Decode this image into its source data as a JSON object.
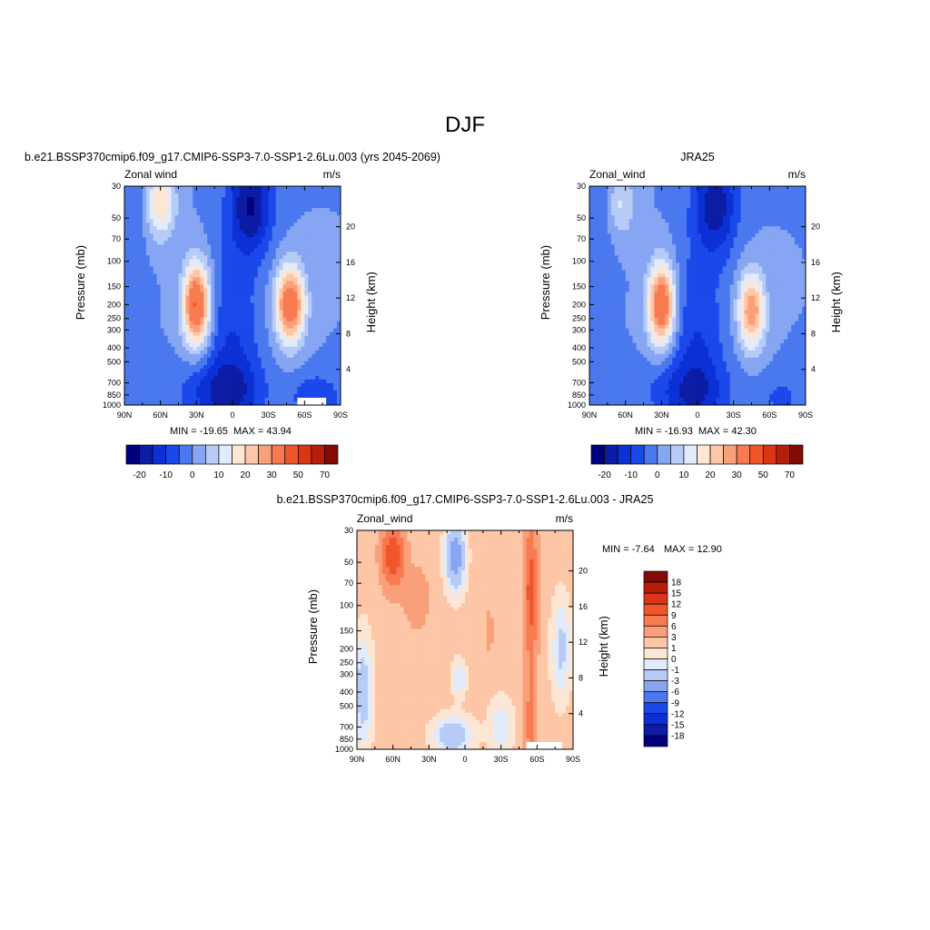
{
  "figure": {
    "title": "DJF",
    "colors": {
      "white": "#ffffff",
      "missing": "#ffffff"
    }
  },
  "chart_data": [
    {
      "type": "heatmap",
      "id": "model",
      "title": "b.e21.BSSP370cmip6.f09_g17.CMIP6-SSP3-7.0-SSP1-2.6Lu.003 (yrs 2045-2069)",
      "left_label": "Zonal wind",
      "right_label": "m/s",
      "ylabel": "Pressure (mb)",
      "ylabel_right": "Height (km)",
      "x_ticks": [
        "90N",
        "60N",
        "30N",
        "0",
        "30S",
        "60S",
        "90S"
      ],
      "x_range": [
        90,
        -90
      ],
      "y_ticks": [
        "30",
        "50",
        "70",
        "100",
        "150",
        "200",
        "250",
        "300",
        "400",
        "500",
        "700",
        "850",
        "1000"
      ],
      "y_range_mb": [
        30,
        1000
      ],
      "y_scale": "log",
      "height_ticks": [
        "4",
        "8",
        "12",
        "16",
        "20"
      ],
      "min_text": "MIN = -19.65",
      "max_text": "MAX =  43.94",
      "min": -19.65,
      "max": 43.94,
      "levels": [
        -20,
        -15,
        -10,
        -5,
        0,
        5,
        10,
        15,
        20,
        25,
        30,
        40,
        50,
        60,
        70
      ],
      "colorbar_labels": [
        "-20",
        "-10",
        "0",
        "10",
        "20",
        "30",
        "50",
        "70"
      ],
      "colorbar": [
        "#00007f",
        "#0c1ca4",
        "#0b31d6",
        "#1a48ea",
        "#4a78ef",
        "#86a6f3",
        "#b7cbf7",
        "#e1ebfb",
        "#fde7d4",
        "#fcc6a7",
        "#f9a07a",
        "#f77a50",
        "#f1562b",
        "#dc3416",
        "#b81d0c",
        "#820b05"
      ],
      "colorbar_orientation": "horizontal",
      "features": [
        {
          "lat": 30,
          "p": 200,
          "amp": 42,
          "sx": 11,
          "sy": 0.65
        },
        {
          "lat": -48,
          "p": 200,
          "amp": 38,
          "sx": 12,
          "sy": 0.6
        },
        {
          "lat": 60,
          "p": 40,
          "amp": 20,
          "sx": 12,
          "sy": 0.55
        },
        {
          "lat": 0,
          "p": 400,
          "amp": -10,
          "sx": 22,
          "sy": 1.6
        },
        {
          "lat": -15,
          "p": 40,
          "amp": -20,
          "sx": 18,
          "sy": 0.8
        },
        {
          "lat": 10,
          "p": 800,
          "amp": -12,
          "sx": 35,
          "sy": 0.5
        },
        {
          "lat": -70,
          "p": 900,
          "amp": -10,
          "sx": 20,
          "sy": 0.4
        },
        {
          "lat": 80,
          "p": 40,
          "amp": -4,
          "sx": 14,
          "sy": 0.9
        }
      ],
      "missing_below_mb": 900,
      "missing_lat_range": [
        -55,
        -78
      ]
    },
    {
      "type": "heatmap",
      "id": "obs",
      "title": "JRA25",
      "left_label": "Zonal_wind",
      "right_label": "m/s",
      "ylabel": "Pressure (mb)",
      "ylabel_right": "Height (km)",
      "x_ticks": [
        "90N",
        "60N",
        "30N",
        "0",
        "30S",
        "60S",
        "90S"
      ],
      "x_range": [
        90,
        -90
      ],
      "y_ticks": [
        "30",
        "50",
        "70",
        "100",
        "150",
        "200",
        "250",
        "300",
        "400",
        "500",
        "700",
        "850",
        "1000"
      ],
      "y_range_mb": [
        30,
        1000
      ],
      "y_scale": "log",
      "height_ticks": [
        "4",
        "8",
        "12",
        "16",
        "20"
      ],
      "min_text": "MIN = -16.93",
      "max_text": "MAX =  42.30",
      "min": -16.93,
      "max": 42.3,
      "levels": [
        -20,
        -15,
        -10,
        -5,
        0,
        5,
        10,
        15,
        20,
        25,
        30,
        40,
        50,
        60,
        70
      ],
      "colorbar_labels": [
        "-20",
        "-10",
        "0",
        "10",
        "20",
        "30",
        "50",
        "70"
      ],
      "colorbar": [
        "#00007f",
        "#0c1ca4",
        "#0b31d6",
        "#1a48ea",
        "#4a78ef",
        "#86a6f3",
        "#b7cbf7",
        "#e1ebfb",
        "#fde7d4",
        "#fcc6a7",
        "#f9a07a",
        "#f77a50",
        "#f1562b",
        "#dc3416",
        "#b81d0c",
        "#820b05"
      ],
      "colorbar_orientation": "horizontal",
      "features": [
        {
          "lat": 30,
          "p": 200,
          "amp": 40,
          "sx": 11,
          "sy": 0.65
        },
        {
          "lat": -45,
          "p": 220,
          "amp": 30,
          "sx": 11,
          "sy": 0.6
        },
        {
          "lat": 65,
          "p": 40,
          "amp": 12,
          "sx": 12,
          "sy": 0.55
        },
        {
          "lat": 0,
          "p": 400,
          "amp": -10,
          "sx": 22,
          "sy": 1.6
        },
        {
          "lat": -15,
          "p": 40,
          "amp": -18,
          "sx": 18,
          "sy": 0.8
        },
        {
          "lat": 10,
          "p": 800,
          "amp": -10,
          "sx": 35,
          "sy": 0.5
        },
        {
          "lat": -70,
          "p": 900,
          "amp": -6,
          "sx": 20,
          "sy": 0.4
        },
        {
          "lat": 80,
          "p": 40,
          "amp": -6,
          "sx": 14,
          "sy": 0.9
        }
      ]
    },
    {
      "type": "heatmap",
      "id": "diff",
      "title": "b.e21.BSSP370cmip6.f09_g17.CMIP6-SSP3-7.0-SSP1-2.6Lu.003 - JRA25",
      "left_label": "Zonal_wind",
      "right_label": "m/s",
      "ylabel": "Pressure (mb)",
      "ylabel_right": "Height (km)",
      "x_ticks": [
        "90N",
        "60N",
        "30N",
        "0",
        "30S",
        "60S",
        "90S"
      ],
      "x_range": [
        90,
        -90
      ],
      "y_ticks": [
        "30",
        "50",
        "70",
        "100",
        "150",
        "200",
        "250",
        "300",
        "400",
        "500",
        "700",
        "850",
        "1000"
      ],
      "y_range_mb": [
        30,
        1000
      ],
      "y_scale": "log",
      "height_ticks": [
        "4",
        "8",
        "12",
        "16",
        "20"
      ],
      "min_text": "MIN =  -7.64",
      "max_text": "MAX =  12.90",
      "min": -7.64,
      "max": 12.9,
      "levels": [
        -18,
        -15,
        -12,
        -9,
        -6,
        -3,
        -1,
        0,
        1,
        3,
        6,
        9,
        12,
        15,
        18
      ],
      "colorbar_labels": [
        "18",
        "15",
        "12",
        "9",
        "6",
        "3",
        "1",
        "0",
        "-1",
        "-3",
        "-6",
        "-9",
        "-12",
        "-15",
        "-18"
      ],
      "colorbar": [
        "#00007f",
        "#0c1ca4",
        "#0b31d6",
        "#1a48ea",
        "#4a78ef",
        "#86a6f3",
        "#b7cbf7",
        "#e1ebfb",
        "#fde7d4",
        "#fcc6a7",
        "#f9a07a",
        "#f77a50",
        "#f1562b",
        "#dc3416",
        "#b81d0c",
        "#820b05"
      ],
      "colorbar_orientation": "vertical",
      "background": 1.5,
      "features": [
        {
          "lat": 60,
          "p": 45,
          "amp": 10,
          "sx": 10,
          "sy": 0.55
        },
        {
          "lat": 40,
          "p": 90,
          "amp": 4,
          "sx": 10,
          "sy": 0.5
        },
        {
          "lat": -55,
          "p": 80,
          "amp": 9,
          "sx": 6,
          "sy": 1.2
        },
        {
          "lat": -55,
          "p": 700,
          "amp": 6,
          "sx": 5,
          "sy": 0.8
        },
        {
          "lat": -20,
          "p": 150,
          "amp": 3,
          "sx": 4,
          "sy": 0.4
        },
        {
          "lat": 8,
          "p": 45,
          "amp": -6,
          "sx": 8,
          "sy": 0.55
        },
        {
          "lat": 5,
          "p": 320,
          "amp": -2.5,
          "sx": 6,
          "sy": 0.3
        },
        {
          "lat": 10,
          "p": 800,
          "amp": -4,
          "sx": 16,
          "sy": 0.3
        },
        {
          "lat": 85,
          "p": 400,
          "amp": -3.5,
          "sx": 8,
          "sy": 0.9
        },
        {
          "lat": -80,
          "p": 200,
          "amp": -3,
          "sx": 8,
          "sy": 0.8
        },
        {
          "lat": -30,
          "p": 700,
          "amp": -2.5,
          "sx": 10,
          "sy": 0.45
        }
      ],
      "missing_below_mb": 880,
      "missing_lat_range": [
        -52,
        -80
      ]
    }
  ]
}
